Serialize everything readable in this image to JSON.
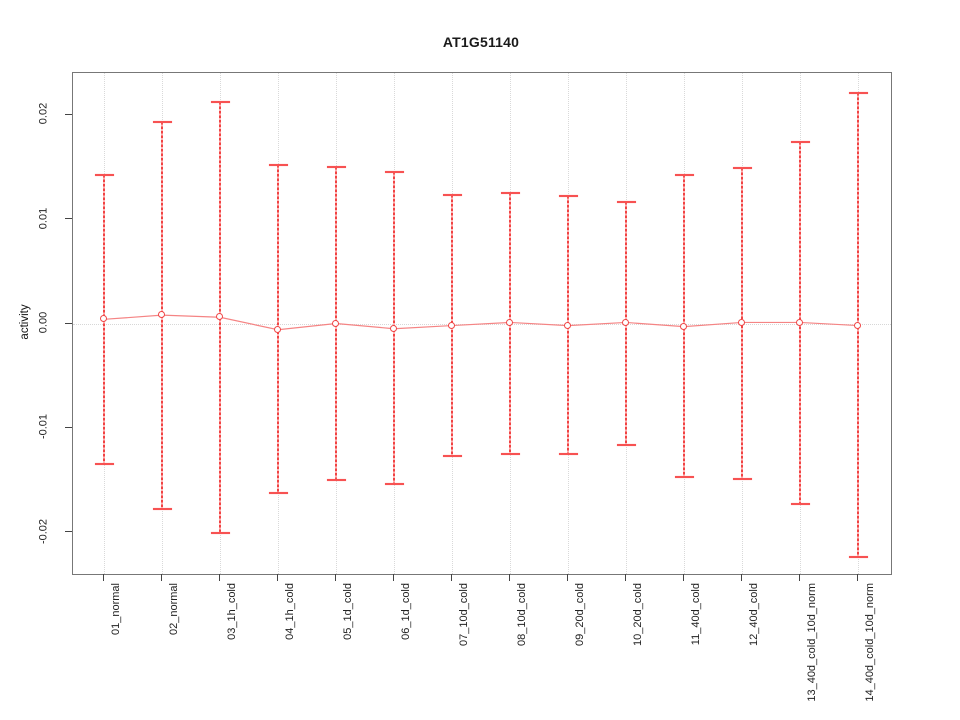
{
  "title": "AT1G51140",
  "y_axis_title": "activity",
  "colors": {
    "errorbar_red": "#f04848",
    "connector_light_red": "#f58484",
    "grid_gray": "#d9d9d9",
    "box_border_gray": "#777777",
    "tick_gray": "#444444",
    "text_black": "#1a1a1a"
  },
  "chart_data": {
    "type": "errorbar",
    "title": "AT1G51140",
    "xlabel": "",
    "ylabel": "activity",
    "ylim": [
      -0.024,
      0.024
    ],
    "grid": "vertical dotted line per category; horizontal dotted line at y=0",
    "legend_position": "none",
    "yticks": [
      {
        "value": 0.02,
        "label": "0.02"
      },
      {
        "value": 0.01,
        "label": "0.01"
      },
      {
        "value": 0.0,
        "label": "0.00"
      },
      {
        "value": -0.01,
        "label": "-0.01"
      },
      {
        "value": -0.02,
        "label": "-0.02"
      }
    ],
    "categories": [
      "01_normal",
      "02_normal",
      "03_1h_cold",
      "04_1h_cold",
      "05_1d_cold",
      "06_1d_cold",
      "07_10d_cold",
      "08_10d_cold",
      "09_20d_cold",
      "10_20d_cold",
      "11_40d_cold",
      "12_40d_cold",
      "13_40d_cold_10d_norm",
      "14_40d_cold_10d_norm"
    ],
    "series": [
      {
        "name": "activity",
        "values": [
          0.0004,
          0.0008,
          0.0006,
          -0.0006,
          0.0,
          -0.0005,
          -0.0002,
          0.0001,
          -0.0002,
          0.0001,
          -0.0003,
          0.0001,
          0.0001,
          -0.0002
        ],
        "upper": [
          0.0142,
          0.0193,
          0.0212,
          0.0152,
          0.015,
          0.0145,
          0.0123,
          0.0125,
          0.0122,
          0.0116,
          0.0142,
          0.0149,
          0.0174,
          0.0221
        ],
        "lower": [
          -0.0135,
          -0.0178,
          -0.0201,
          -0.0162,
          -0.015,
          -0.0154,
          -0.0127,
          -0.0125,
          -0.0125,
          -0.0116,
          -0.0147,
          -0.0149,
          -0.0173,
          -0.0224
        ]
      }
    ]
  }
}
